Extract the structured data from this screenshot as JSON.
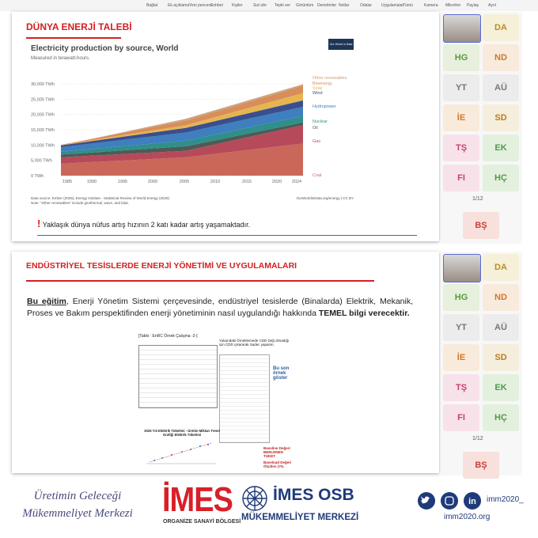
{
  "toolbar": [
    "Bağlat",
    "Ek açıklama",
    "Yeni pencere",
    "Sohbet",
    "Kişiler",
    "Sizi izle",
    "Tepki ver",
    "Görüntüm",
    "Denetimler",
    "Notlar",
    "Odalar",
    "Uygulamalar",
    "Tümü",
    "Kamera",
    "Mikrofon",
    "Paylaş",
    "Ayrıl"
  ],
  "slide1": {
    "title": "DÜNYA ENERJİ TALEBİ",
    "chart": {
      "title": "Electricity production by source, World",
      "subtitle": "Measured in terawatt-hours.",
      "logo": "Our World in Data",
      "yticks": [
        "30,000 TWh",
        "25,000 TWh",
        "20,000 TWh",
        "15,000 TWh",
        "10,000 TWh",
        "5,000 TWh",
        "0 TWh"
      ],
      "xticks": [
        "1985",
        "1990",
        "1995",
        "2000",
        "2005",
        "2010",
        "2015",
        "2020",
        "2024"
      ],
      "legend": [
        {
          "name": "Other renewables",
          "color": "#c9a37c"
        },
        {
          "name": "Bioenergy",
          "color": "#d98d5a"
        },
        {
          "name": "Solar",
          "color": "#e6b54f"
        },
        {
          "name": "Wind",
          "color": "#3a4f8f"
        },
        {
          "name": "Hydropower",
          "color": "#3f7fbf"
        },
        {
          "name": "Nuclear",
          "color": "#2f8f8a"
        },
        {
          "name": "Oil",
          "color": "#4e5b55"
        },
        {
          "name": "Gas",
          "color": "#b74a5a"
        },
        {
          "name": "Coal",
          "color": "#c9685a"
        }
      ],
      "source": "Data source: Ember (2025); Energy Institute - Statistical Review of World Energy (2025)",
      "note": "Note: \"Other renewables\" include geothermal, wave, and tidal.",
      "url": "OurWorldinData.org/energy | CC BY"
    },
    "footnote": "Yaklaşık dünya nüfus artış hızının 2 katı kadar artış yaşamaktadır."
  },
  "slide2": {
    "title": "ENDÜSTRİYEL TESİSLERDE ENERJİ YÖNETİMİ VE UYGULAMALARI",
    "body_lead": "Bu eğitim",
    "body": ", Enerji Yönetim Sistemi çerçevesinde, endüstriyel tesislerde (Binalarda) Elektrik, Mekanik, Proses ve Bakım perspektifinden enerji yönetiminin nasıl uygulandığı hakkında ",
    "body_bold": "TEMEL bilgi verecektir.",
    "table_caption": "[Tablo : EnRC Örnek Çalışma -2-]",
    "side_text": "Yukarıdaki Örneklemede CDD Değ olmadığı için CDD çıkararak Sadec yapalım,",
    "side_blue": "Bu son örnek göster",
    "chart_title": "2025 Yılı Elektrik Tüketimi - Üretim Miktarı Trend Grafiği Elektrik Tüketimi",
    "baseline": "Baseline Değeri BERLENEN TÜKET",
    "baseline2": "Baseload Değeri Ölçülen (YIL"
  },
  "participants": [
    {
      "initials": "DA",
      "color": "#b89020",
      "bg": "#f6f0d8"
    },
    {
      "initials": "HG",
      "color": "#5a9a3a",
      "bg": "#e6f0dc"
    },
    {
      "initials": "ND",
      "color": "#d0782a",
      "bg": "#f8ebdc"
    },
    {
      "initials": "YT",
      "color": "#777777",
      "bg": "#ececec"
    },
    {
      "initials": "AÜ",
      "color": "#777777",
      "bg": "#ececec"
    },
    {
      "initials": "İE",
      "color": "#d0782a",
      "bg": "#f8ebdc"
    },
    {
      "initials": "SD",
      "color": "#c07a20",
      "bg": "#f6eedc"
    },
    {
      "initials": "TŞ",
      "color": "#c9406a",
      "bg": "#f8e2ea"
    },
    {
      "initials": "EK",
      "color": "#4f9a4a",
      "bg": "#e3f0de"
    },
    {
      "initials": "FI",
      "color": "#c9406a",
      "bg": "#f8e2ea"
    },
    {
      "initials": "HÇ",
      "color": "#4f9a4a",
      "bg": "#e3f0de"
    }
  ],
  "pager": "1/12",
  "last_participant": {
    "initials": "BŞ",
    "color": "#c8403a",
    "bg": "#f8e0dc"
  },
  "footer": {
    "slogan1": "Üretimin Geleceği",
    "slogan2": "Mükemmeliyet Merkezi",
    "imes": "İMES",
    "imes_sub": "ORGANİZE SANAYİ BÖLGESİ",
    "osb": "İMES OSB",
    "osb_sub": "MÜKEMMELİYET MERKEZİ",
    "handle": "imm2020_",
    "site": "imm2020.org"
  }
}
